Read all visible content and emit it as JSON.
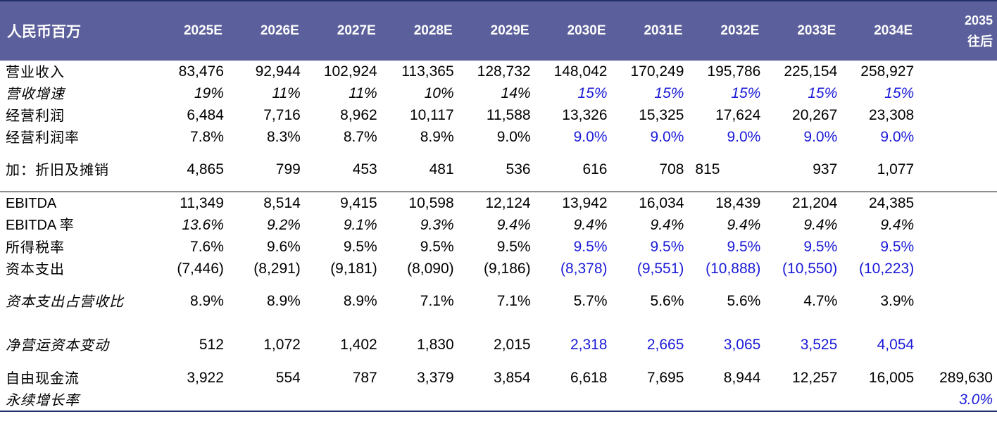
{
  "header": {
    "label": "人民币百万",
    "years": [
      "2025E",
      "2026E",
      "2027E",
      "2028E",
      "2029E",
      "2030E",
      "2031E",
      "2032E",
      "2033E",
      "2034E"
    ],
    "terminal_line1": "2035",
    "terminal_line2": "往后"
  },
  "rows": [
    {
      "label": "营业收入",
      "values": [
        "83,476",
        "92,944",
        "102,924",
        "113,365",
        "128,732",
        "148,042",
        "170,249",
        "195,786",
        "225,154",
        "258,927"
      ],
      "terminal": ""
    },
    {
      "label": "营收增速",
      "values": [
        "19%",
        "11%",
        "11%",
        "10%",
        "14%",
        "15%",
        "15%",
        "15%",
        "15%",
        "15%"
      ],
      "terminal": ""
    },
    {
      "label": "经营利润",
      "values": [
        "6,484",
        "7,716",
        "8,962",
        "10,117",
        "11,588",
        "13,326",
        "15,325",
        "17,624",
        "20,267",
        "23,308"
      ],
      "terminal": ""
    },
    {
      "label": "经营利润率",
      "values": [
        "7.8%",
        "8.3%",
        "8.7%",
        "8.9%",
        "9.0%",
        "9.0%",
        "9.0%",
        "9.0%",
        "9.0%",
        "9.0%"
      ],
      "terminal": ""
    },
    {
      "label": "加：折旧及摊销",
      "values": [
        "4,865",
        "799",
        "453",
        "481",
        "536",
        "616",
        "708",
        "815",
        "937",
        "1,077"
      ],
      "terminal": ""
    },
    {
      "label": "EBITDA",
      "values": [
        "11,349",
        "8,514",
        "9,415",
        "10,598",
        "12,124",
        "13,942",
        "16,034",
        "18,439",
        "21,204",
        "24,385"
      ],
      "terminal": ""
    },
    {
      "label": "EBITDA 率",
      "values": [
        "13.6%",
        "9.2%",
        "9.1%",
        "9.3%",
        "9.4%",
        "9.4%",
        "9.4%",
        "9.4%",
        "9.4%",
        "9.4%"
      ],
      "terminal": ""
    },
    {
      "label": "所得税率",
      "values": [
        "7.6%",
        "9.6%",
        "9.5%",
        "9.5%",
        "9.5%",
        "9.5%",
        "9.5%",
        "9.5%",
        "9.5%",
        "9.5%"
      ],
      "terminal": ""
    },
    {
      "label": "资本支出",
      "values": [
        "(7,446)",
        "(8,291)",
        "(9,181)",
        "(8,090)",
        "(9,186)",
        "(8,378)",
        "(9,551)",
        "(10,888)",
        "(10,550)",
        "(10,223)"
      ],
      "terminal": ""
    },
    {
      "label": "资本支出占营收比",
      "values": [
        "8.9%",
        "8.9%",
        "8.9%",
        "7.1%",
        "7.1%",
        "5.7%",
        "5.6%",
        "5.6%",
        "4.7%",
        "3.9%"
      ],
      "terminal": ""
    },
    {
      "label": "净营运资本变动",
      "values": [
        "512",
        "1,072",
        "1,402",
        "1,830",
        "2,015",
        "2,318",
        "2,665",
        "3,065",
        "3,525",
        "4,054"
      ],
      "terminal": ""
    },
    {
      "label": "自由现金流",
      "values": [
        "3,922",
        "554",
        "787",
        "3,379",
        "3,854",
        "6,618",
        "7,695",
        "8,944",
        "12,257",
        "16,005"
      ],
      "terminal": "289,630"
    },
    {
      "label": "永续增长率",
      "values": [
        "",
        "",
        "",
        "",
        "",
        "",
        "",
        "",
        "",
        ""
      ],
      "terminal": "3.0%"
    }
  ],
  "colors": {
    "header_bg": "#5b5f9b",
    "header_text": "#ffffff",
    "input_blue": "#1a1ad8",
    "rule": "#1f2d6b"
  }
}
